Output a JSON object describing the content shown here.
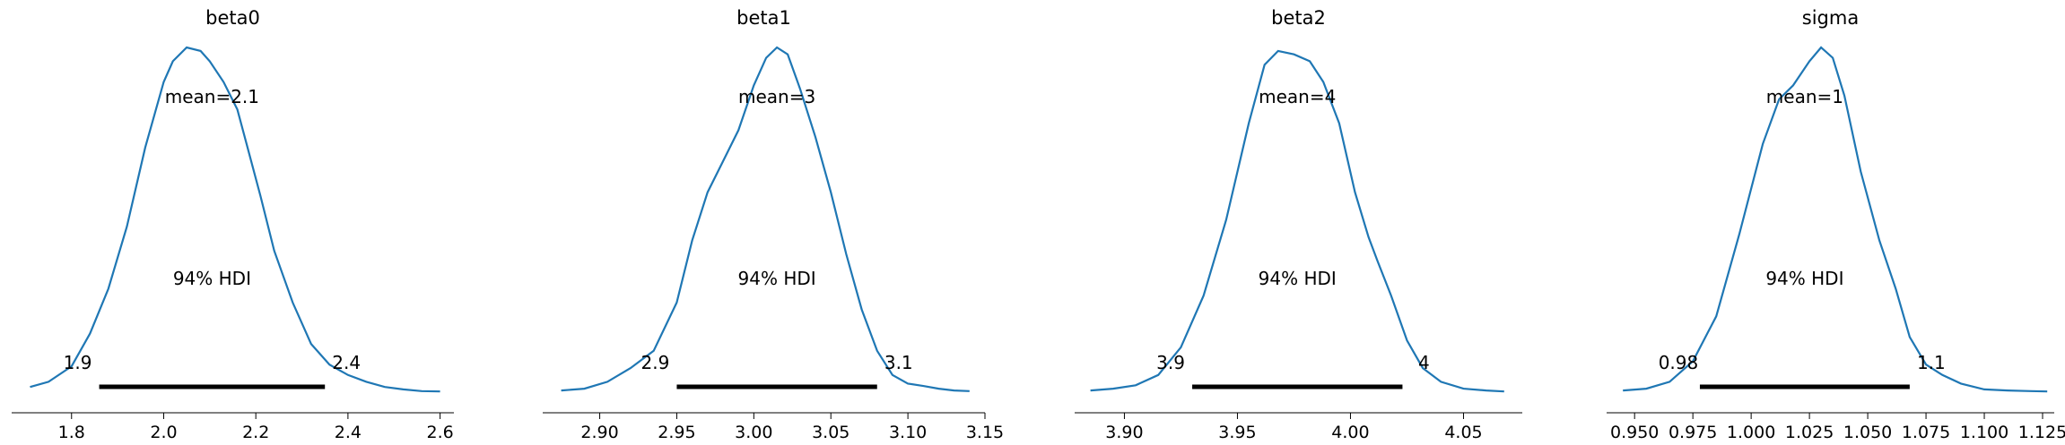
{
  "chart_data": [
    {
      "type": "line",
      "title": "beta0",
      "xlim": [
        1.67,
        2.63
      ],
      "xticks": [
        1.8,
        2.0,
        2.2,
        2.4,
        2.6
      ],
      "xtick_labels": [
        "1.8",
        "2.0",
        "2.2",
        "2.4",
        "2.6"
      ],
      "mean_label": "mean=2.1",
      "hdi_label": "94% HDI",
      "hdi": [
        1.86,
        2.35
      ],
      "hdi_low_label": "1.9",
      "hdi_high_label": "2.4",
      "color": "#1f77b4",
      "x": [
        1.71,
        1.75,
        1.8,
        1.84,
        1.88,
        1.92,
        1.96,
        2.0,
        2.02,
        2.05,
        2.08,
        2.1,
        2.13,
        2.16,
        2.18,
        2.21,
        2.24,
        2.28,
        2.32,
        2.36,
        2.4,
        2.44,
        2.48,
        2.52,
        2.56,
        2.6
      ],
      "y": [
        0.015,
        0.03,
        0.075,
        0.17,
        0.3,
        0.48,
        0.71,
        0.9,
        0.96,
        1.0,
        0.99,
        0.96,
        0.9,
        0.82,
        0.72,
        0.57,
        0.41,
        0.26,
        0.14,
        0.08,
        0.05,
        0.03,
        0.015,
        0.008,
        0.003,
        0.002
      ]
    },
    {
      "type": "line",
      "title": "beta1",
      "xlim": [
        2.863,
        3.15
      ],
      "xticks": [
        2.9,
        2.95,
        3.0,
        3.05,
        3.1,
        3.15
      ],
      "xtick_labels": [
        "2.90",
        "2.95",
        "3.00",
        "3.05",
        "3.10",
        "3.15"
      ],
      "mean_label": "mean=3",
      "hdi_label": "94% HDI",
      "hdi": [
        2.95,
        3.08
      ],
      "hdi_low_label": "2.9",
      "hdi_high_label": "3.1",
      "color": "#1f77b4",
      "x": [
        2.875,
        2.89,
        2.905,
        2.92,
        2.935,
        2.95,
        2.96,
        2.97,
        2.98,
        2.99,
        3.0,
        3.008,
        3.015,
        3.022,
        3.03,
        3.04,
        3.05,
        3.06,
        3.07,
        3.08,
        3.09,
        3.1,
        3.11,
        3.12,
        3.13,
        3.14
      ],
      "y": [
        0.005,
        0.01,
        0.03,
        0.07,
        0.12,
        0.26,
        0.44,
        0.58,
        0.67,
        0.76,
        0.89,
        0.97,
        1.0,
        0.98,
        0.88,
        0.74,
        0.58,
        0.4,
        0.24,
        0.12,
        0.05,
        0.025,
        0.018,
        0.01,
        0.005,
        0.003
      ]
    },
    {
      "type": "line",
      "title": "beta2",
      "xlim": [
        3.878,
        4.076
      ],
      "xticks": [
        3.9,
        3.95,
        4.0,
        4.05
      ],
      "xtick_labels": [
        "3.90",
        "3.95",
        "4.00",
        "4.05"
      ],
      "mean_label": "mean=4",
      "hdi_label": "94% HDI",
      "hdi": [
        3.93,
        4.023
      ],
      "hdi_low_label": "3.9",
      "hdi_high_label": "4",
      "color": "#1f77b4",
      "x": [
        3.885,
        3.895,
        3.905,
        3.915,
        3.925,
        3.935,
        3.945,
        3.955,
        3.962,
        3.968,
        3.975,
        3.982,
        3.988,
        3.995,
        4.002,
        4.008,
        4.012,
        4.018,
        4.025,
        4.032,
        4.04,
        4.05,
        4.06,
        4.068
      ],
      "y": [
        0.005,
        0.01,
        0.02,
        0.05,
        0.13,
        0.28,
        0.5,
        0.78,
        0.95,
        0.99,
        0.98,
        0.96,
        0.9,
        0.78,
        0.58,
        0.45,
        0.38,
        0.28,
        0.15,
        0.07,
        0.03,
        0.01,
        0.005,
        0.002
      ]
    },
    {
      "type": "line",
      "title": "sigma",
      "xlim": [
        0.938,
        1.13
      ],
      "xticks": [
        0.95,
        0.975,
        1.0,
        1.025,
        1.05,
        1.075,
        1.1,
        1.125
      ],
      "xtick_labels": [
        "0.950",
        "0.975",
        "1.000",
        "1.025",
        "1.050",
        "1.075",
        "1.100",
        "1.125"
      ],
      "mean_label": "mean=1",
      "hdi_label": "94% HDI",
      "hdi": [
        0.978,
        1.068
      ],
      "hdi_low_label": "0.98",
      "hdi_high_label": "1.1",
      "color": "#1f77b4",
      "x": [
        0.945,
        0.955,
        0.965,
        0.975,
        0.985,
        0.995,
        1.005,
        1.012,
        1.018,
        1.025,
        1.03,
        1.035,
        1.04,
        1.047,
        1.055,
        1.062,
        1.068,
        1.075,
        1.082,
        1.09,
        1.1,
        1.11,
        1.12,
        1.127
      ],
      "y": [
        0.005,
        0.01,
        0.03,
        0.09,
        0.22,
        0.46,
        0.72,
        0.85,
        0.89,
        0.96,
        1.0,
        0.97,
        0.86,
        0.64,
        0.44,
        0.3,
        0.16,
        0.08,
        0.05,
        0.025,
        0.008,
        0.005,
        0.003,
        0.002
      ]
    }
  ]
}
